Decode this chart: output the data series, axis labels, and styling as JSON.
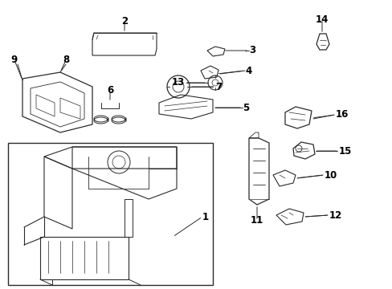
{
  "background_color": "#ffffff",
  "line_color": "#2a2a2a",
  "text_color": "#000000",
  "fig_width": 4.89,
  "fig_height": 3.6,
  "dpi": 100
}
